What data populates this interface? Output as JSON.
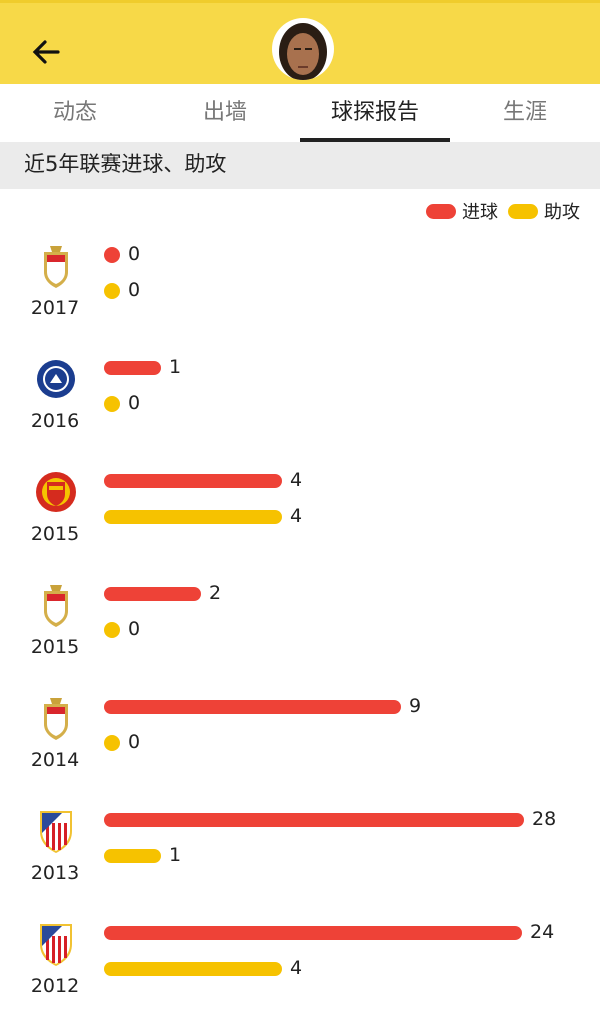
{
  "header": {
    "back_icon": "arrow-left-icon",
    "avatar": "player-avatar"
  },
  "tabs": [
    {
      "label": "动态"
    },
    {
      "label": "出墙"
    },
    {
      "label": "球探报告",
      "active": true
    },
    {
      "label": "生涯"
    }
  ],
  "section": {
    "title": "近5年联赛进球、助攻"
  },
  "colors": {
    "goals": "#ee4237",
    "assists": "#f6c200",
    "header": "#f7d948"
  },
  "chart_data": {
    "type": "bar",
    "legend": [
      {
        "name": "进球",
        "color": "#ee4237"
      },
      {
        "name": "助攻",
        "color": "#f6c200"
      }
    ],
    "legend_placement": "top-right",
    "rows": [
      {
        "year": "2017",
        "club_icon": "monaco-crest-icon",
        "goals": 0,
        "assists": 0
      },
      {
        "year": "2016",
        "club_icon": "chelsea-crest-icon",
        "goals": 1,
        "assists": 0
      },
      {
        "year": "2015",
        "club_icon": "manchester-united-crest-icon",
        "goals": 4,
        "assists": 4
      },
      {
        "year": "2015",
        "club_icon": "monaco-crest-icon",
        "goals": 2,
        "assists": 0
      },
      {
        "year": "2014",
        "club_icon": "monaco-crest-icon",
        "goals": 9,
        "assists": 0
      },
      {
        "year": "2013",
        "club_icon": "atletico-madrid-crest-icon",
        "goals": 28,
        "assists": 1
      },
      {
        "year": "2012",
        "club_icon": "atletico-madrid-crest-icon",
        "goals": 24,
        "assists": 4
      }
    ]
  }
}
